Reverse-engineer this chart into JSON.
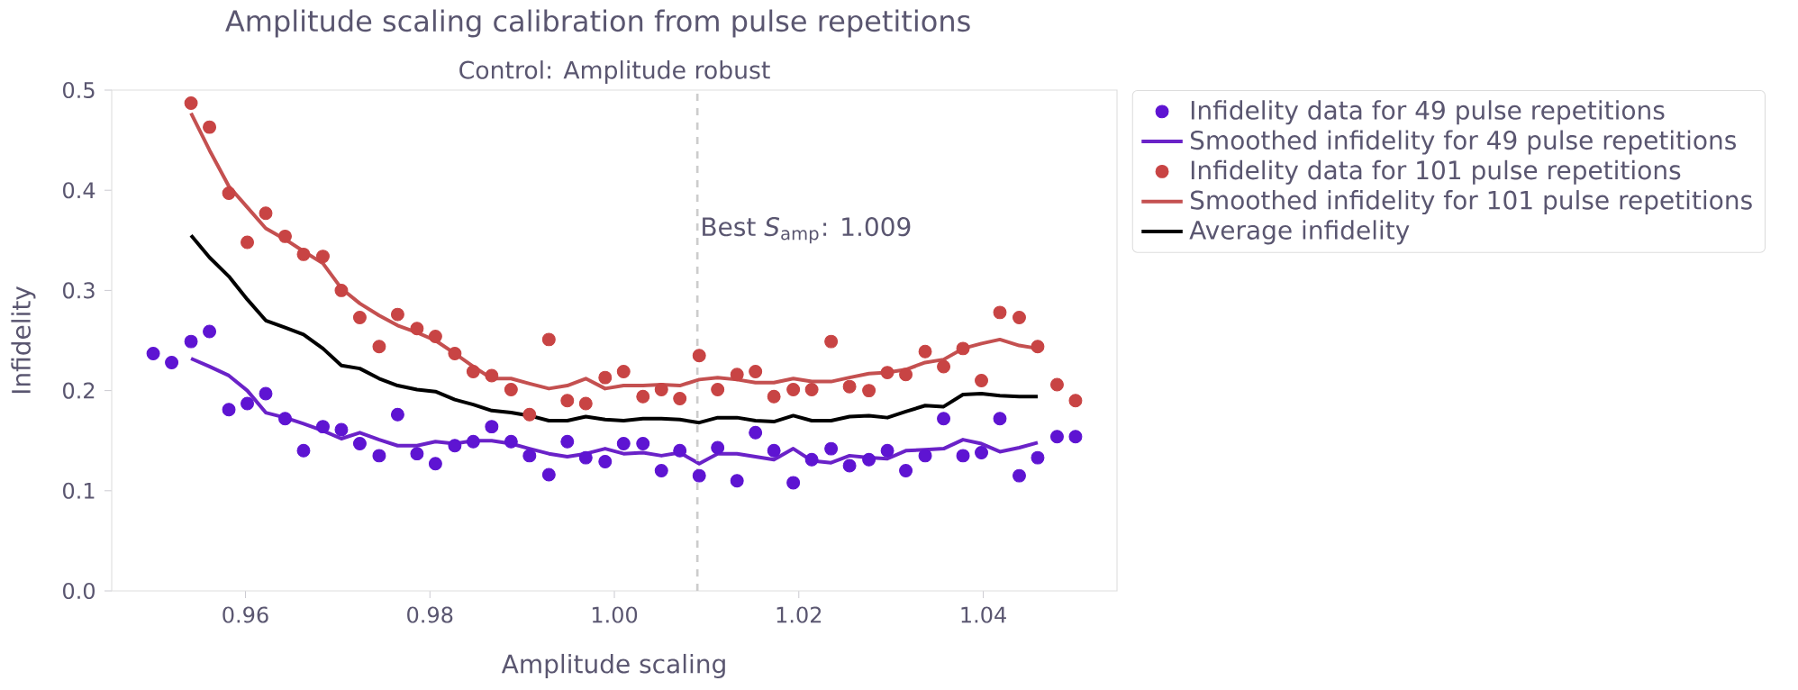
{
  "chart_data": {
    "type": "scatter",
    "title": "Amplitude scaling calibration from pulse repetitions",
    "subtitle": "Control: Amplitude robust",
    "xlabel": "Amplitude scaling",
    "ylabel": "Infidelity",
    "x": [
      0.95,
      0.952,
      0.9541,
      0.9561,
      0.9582,
      0.9602,
      0.9622,
      0.9643,
      0.9663,
      0.9684,
      0.9704,
      0.9724,
      0.9745,
      0.9765,
      0.9786,
      0.9806,
      0.9827,
      0.9847,
      0.9867,
      0.9888,
      0.9908,
      0.9929,
      0.9949,
      0.9969,
      0.999,
      1.001,
      1.0031,
      1.0051,
      1.0071,
      1.0092,
      1.0112,
      1.0133,
      1.0153,
      1.0173,
      1.0194,
      1.0214,
      1.0235,
      1.0255,
      1.0276,
      1.0296,
      1.0316,
      1.0337,
      1.0357,
      1.0378,
      1.0398,
      1.0418,
      1.0439,
      1.0459,
      1.048,
      1.05
    ],
    "series": [
      {
        "name": "Infidelity data for 49 pulse repetitions",
        "type": "scatter",
        "marker": "circle",
        "color": "#5e14d2",
        "values": [
          0.237,
          0.228,
          0.249,
          0.259,
          0.181,
          0.187,
          0.197,
          0.172,
          0.14,
          0.164,
          0.161,
          0.147,
          0.135,
          0.176,
          0.137,
          0.127,
          0.145,
          0.149,
          0.164,
          0.149,
          0.135,
          0.116,
          0.149,
          0.133,
          0.129,
          0.147,
          0.147,
          0.12,
          0.14,
          0.115,
          0.143,
          0.11,
          0.158,
          0.14,
          0.108,
          0.131,
          0.142,
          0.125,
          0.131,
          0.14,
          0.12,
          0.135,
          0.172,
          0.135,
          0.138,
          0.172,
          0.115,
          0.133,
          0.154,
          0.154
        ]
      },
      {
        "name": "Smoothed infidelity for 49 pulse repetitions",
        "type": "line",
        "marker": "none",
        "color": "#6a22c8",
        "values": [
          null,
          null,
          0.232,
          0.224,
          0.215,
          0.2,
          0.178,
          0.173,
          0.167,
          0.16,
          0.152,
          0.158,
          0.151,
          0.145,
          0.145,
          0.149,
          0.147,
          0.15,
          0.15,
          0.147,
          0.142,
          0.137,
          0.134,
          0.137,
          0.142,
          0.137,
          0.138,
          0.135,
          0.138,
          0.127,
          0.137,
          0.137,
          0.134,
          0.131,
          0.142,
          0.13,
          0.128,
          0.135,
          0.133,
          0.132,
          0.14,
          0.141,
          0.142,
          0.151,
          0.147,
          0.139,
          0.143,
          0.148,
          null,
          null
        ]
      },
      {
        "name": "Infidelity data for 101 pulse repetitions",
        "type": "scatter",
        "marker": "circle",
        "color": "#c84444",
        "values": [
          null,
          null,
          0.487,
          0.463,
          0.397,
          0.348,
          0.377,
          0.354,
          0.336,
          0.334,
          0.3,
          0.273,
          0.244,
          0.276,
          0.262,
          0.254,
          0.237,
          0.219,
          0.215,
          0.201,
          0.176,
          0.251,
          0.19,
          0.187,
          0.213,
          0.219,
          0.194,
          0.201,
          0.192,
          0.235,
          0.201,
          0.216,
          0.219,
          0.194,
          0.201,
          0.201,
          0.249,
          0.204,
          0.2,
          0.218,
          0.216,
          0.239,
          0.224,
          0.242,
          0.21,
          0.278,
          0.273,
          0.244,
          0.206,
          0.19
        ]
      },
      {
        "name": "Smoothed infidelity for 101 pulse repetitions",
        "type": "line",
        "marker": "none",
        "color": "#c45050",
        "values": [
          null,
          null,
          0.477,
          0.44,
          0.404,
          0.383,
          0.362,
          0.351,
          0.339,
          0.327,
          0.302,
          0.287,
          0.275,
          0.265,
          0.258,
          0.25,
          0.237,
          0.224,
          0.212,
          0.212,
          0.207,
          0.202,
          0.205,
          0.212,
          0.202,
          0.205,
          0.205,
          0.206,
          0.205,
          0.211,
          0.213,
          0.211,
          0.208,
          0.208,
          0.212,
          0.209,
          0.209,
          0.213,
          0.217,
          0.218,
          0.221,
          0.228,
          0.231,
          0.242,
          0.247,
          0.251,
          0.245,
          0.242,
          null,
          null
        ]
      },
      {
        "name": "Average infidelity",
        "type": "line",
        "marker": "none",
        "color": "#000000",
        "values": [
          null,
          null,
          0.355,
          0.333,
          0.314,
          0.291,
          0.27,
          0.263,
          0.256,
          0.242,
          0.225,
          0.222,
          0.212,
          0.205,
          0.201,
          0.199,
          0.191,
          0.186,
          0.18,
          0.178,
          0.175,
          0.17,
          0.17,
          0.174,
          0.171,
          0.17,
          0.172,
          0.172,
          0.171,
          0.168,
          0.173,
          0.173,
          0.17,
          0.169,
          0.175,
          0.17,
          0.17,
          0.174,
          0.175,
          0.173,
          0.179,
          0.185,
          0.184,
          0.196,
          0.197,
          0.195,
          0.194,
          0.194,
          null,
          null
        ]
      }
    ],
    "xlim": [
      0.9455,
      1.0545
    ],
    "ylim": [
      0,
      0.5
    ],
    "xticks": [
      0.96,
      0.98,
      {
        "value": 1.0,
        "label": "1.00"
      },
      1.02,
      1.04
    ],
    "yticks": [
      {
        "value": 0,
        "label": "0.0"
      },
      0.1,
      0.2,
      0.3,
      0.4,
      0.5
    ],
    "ref_lines": [
      {
        "axis": "x",
        "value": 1.009,
        "label": "Best *S*$_{amp}$: 1.009",
        "color": "#cccccc",
        "line_style": "dashed"
      }
    ],
    "legend": "top right"
  }
}
